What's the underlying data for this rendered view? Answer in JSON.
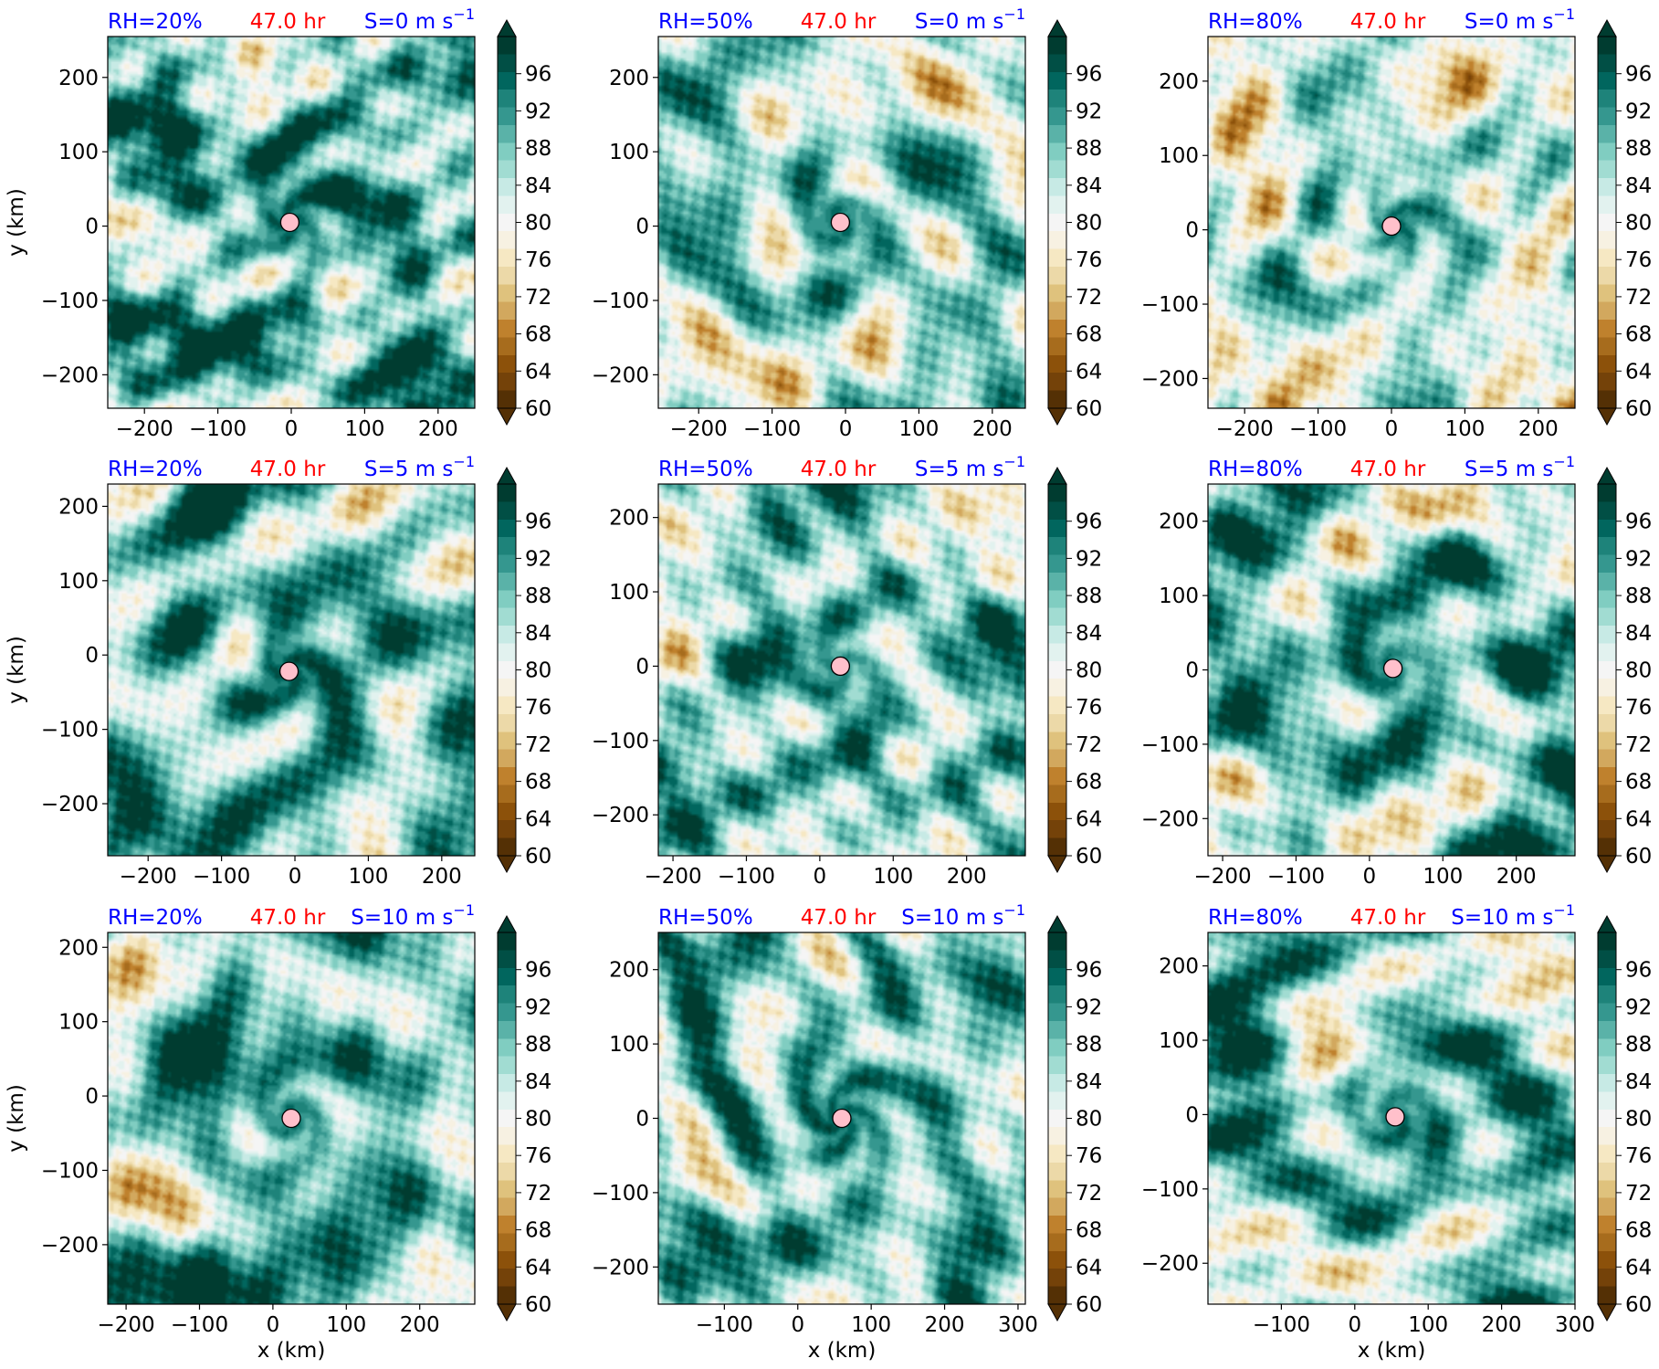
{
  "colors": {
    "title_rh": "#0000ff",
    "title_time": "#ff0000",
    "title_shear": "#0000ff",
    "center_marker": "#ffc0cb",
    "colormap": [
      "#543005",
      "#744209",
      "#8c510a",
      "#a76c1d",
      "#bf812d",
      "#d2a85e",
      "#dfc27d",
      "#ecd9a8",
      "#f6e8c3",
      "#f7f1e2",
      "#f5f5f5",
      "#e2f2ef",
      "#c7eae5",
      "#a1dcd2",
      "#80cdc1",
      "#5ab2a8",
      "#35978f",
      "#1e837a",
      "#01665e",
      "#014f45",
      "#003c30"
    ]
  },
  "colorbar": {
    "ticks": [
      "60",
      "64",
      "68",
      "72",
      "76",
      "80",
      "84",
      "88",
      "92",
      "96"
    ],
    "range": [
      60,
      100
    ],
    "step": 2,
    "extend": "both"
  },
  "chart_data": [
    {
      "type": "heatmap",
      "rh": "RH=20%",
      "time": "47.0 hr",
      "shear": "S=0 m s",
      "shear_exp": "−1",
      "center": [
        -2,
        5
      ],
      "xlim": [
        -250,
        250
      ],
      "ylim": [
        -245,
        255
      ],
      "xticks": [
        "−200",
        "−100",
        "0",
        "100",
        "200"
      ],
      "yticks": [
        "−200",
        "−100",
        "0",
        "100",
        "200"
      ],
      "xlabel": "",
      "ylabel": "y (km)",
      "seed": 11,
      "moist": 0.45
    },
    {
      "type": "heatmap",
      "rh": "RH=50%",
      "time": "47.0 hr",
      "shear": "S=0 m s",
      "shear_exp": "−1",
      "center": [
        -7,
        5
      ],
      "xlim": [
        -255,
        245
      ],
      "ylim": [
        -245,
        255
      ],
      "xticks": [
        "−200",
        "−100",
        "0",
        "100",
        "200"
      ],
      "yticks": [
        "−200",
        "−100",
        "0",
        "100",
        "200"
      ],
      "xlabel": "",
      "ylabel": "",
      "seed": 23,
      "moist": 0.1
    },
    {
      "type": "heatmap",
      "rh": "RH=80%",
      "time": "47.0 hr",
      "shear": "S=0 m s",
      "shear_exp": "−1",
      "center": [
        0,
        5
      ],
      "xlim": [
        -250,
        250
      ],
      "ylim": [
        -240,
        260
      ],
      "xticks": [
        "−200",
        "−100",
        "0",
        "100",
        "200"
      ],
      "yticks": [
        "−200",
        "−100",
        "0",
        "100",
        "200"
      ],
      "xlabel": "",
      "ylabel": "",
      "seed": 37,
      "moist": -0.05
    },
    {
      "type": "heatmap",
      "rh": "RH=20%",
      "time": "47.0 hr",
      "shear": "S=5 m s",
      "shear_exp": "−1",
      "center": [
        -8,
        -22
      ],
      "xlim": [
        -255,
        245
      ],
      "ylim": [
        -270,
        230
      ],
      "xticks": [
        "−200",
        "−100",
        "0",
        "100",
        "200"
      ],
      "yticks": [
        "−200",
        "−100",
        "0",
        "100",
        "200"
      ],
      "xlabel": "",
      "ylabel": "y (km)",
      "seed": 41,
      "moist": 0.45
    },
    {
      "type": "heatmap",
      "rh": "RH=50%",
      "time": "47.0 hr",
      "shear": "S=5 m s",
      "shear_exp": "−1",
      "center": [
        28,
        0
      ],
      "xlim": [
        -220,
        280
      ],
      "ylim": [
        -255,
        245
      ],
      "xticks": [
        "−200",
        "−100",
        "0",
        "100",
        "200"
      ],
      "yticks": [
        "−200",
        "−100",
        "0",
        "100",
        "200"
      ],
      "xlabel": "",
      "ylabel": "",
      "seed": 53,
      "moist": 0.3
    },
    {
      "type": "heatmap",
      "rh": "RH=80%",
      "time": "47.0 hr",
      "shear": "S=5 m s",
      "shear_exp": "−1",
      "center": [
        32,
        2
      ],
      "xlim": [
        -220,
        280
      ],
      "ylim": [
        -250,
        250
      ],
      "xticks": [
        "−200",
        "−100",
        "0",
        "100",
        "200"
      ],
      "yticks": [
        "−200",
        "−100",
        "0",
        "100",
        "200"
      ],
      "xlabel": "",
      "ylabel": "",
      "seed": 67,
      "moist": 0.35
    },
    {
      "type": "heatmap",
      "rh": "RH=20%",
      "time": "47.0 hr",
      "shear": "S=10 m s",
      "shear_exp": "−1",
      "center": [
        25,
        -30
      ],
      "xlim": [
        -225,
        275
      ],
      "ylim": [
        -280,
        220
      ],
      "xticks": [
        "−200",
        "−100",
        "0",
        "100",
        "200"
      ],
      "yticks": [
        "−200",
        "−100",
        "0",
        "100",
        "200"
      ],
      "xlabel": "x (km)",
      "ylabel": "y (km)",
      "seed": 71,
      "moist": 0.4
    },
    {
      "type": "heatmap",
      "rh": "RH=50%",
      "time": "47.0 hr",
      "shear": "S=10 m s",
      "shear_exp": "−1",
      "center": [
        60,
        0
      ],
      "xlim": [
        -190,
        310
      ],
      "ylim": [
        -250,
        250
      ],
      "xticks": [
        "−100",
        "0",
        "100",
        "200",
        "300"
      ],
      "yticks": [
        "−200",
        "−100",
        "0",
        "100",
        "200"
      ],
      "xlabel": "x (km)",
      "ylabel": "",
      "seed": 83,
      "moist": 0.35
    },
    {
      "type": "heatmap",
      "rh": "RH=80%",
      "time": "47.0 hr",
      "shear": "S=10 m s",
      "shear_exp": "−1",
      "center": [
        55,
        -3
      ],
      "xlim": [
        -200,
        300
      ],
      "ylim": [
        -255,
        245
      ],
      "xticks": [
        "−100",
        "0",
        "100",
        "200",
        "300"
      ],
      "yticks": [
        "−200",
        "−100",
        "0",
        "100",
        "200"
      ],
      "xlabel": "x (km)",
      "ylabel": "",
      "seed": 97,
      "moist": 0.3
    }
  ]
}
